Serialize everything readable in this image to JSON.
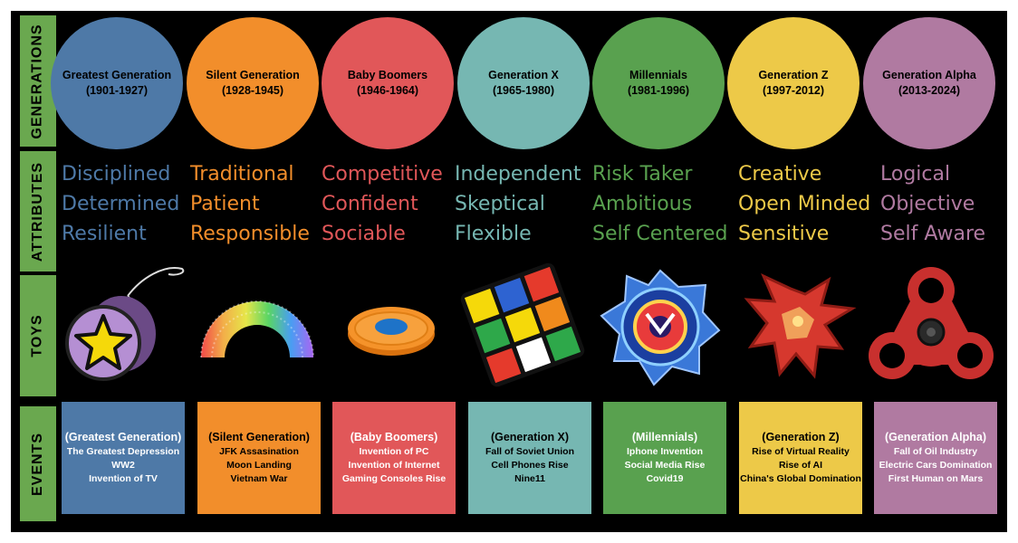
{
  "side_labels": {
    "generations": "GENERATIONS",
    "attributes": "ATTRIBUTES",
    "toys": "TOYS",
    "events": "EVENTS"
  },
  "generations": [
    {
      "name": "Greatest Generation",
      "years": "(1901-1927)",
      "color": "#4e79a7",
      "attributes": [
        "Disciplined",
        "Determined",
        "Resilient"
      ],
      "toy_icon": "yo-yo-icon",
      "event_title": "(Greatest Generation)",
      "events": [
        "The Greatest Depression",
        "WW2",
        "Invention of TV"
      ]
    },
    {
      "name": "Silent Generation",
      "years": "(1928-1945)",
      "color": "#f28e2b",
      "attributes": [
        "Traditional",
        "Patient",
        "Responsible"
      ],
      "toy_icon": "slinky-icon",
      "event_title": "(Silent Generation)",
      "events": [
        "JFK Assasination",
        "Moon Landing",
        "Vietnam War"
      ]
    },
    {
      "name": "Baby Boomers",
      "years": "(1946-1964)",
      "color": "#e15759",
      "attributes": [
        "Competitive",
        "Confident",
        "Sociable"
      ],
      "toy_icon": "frisbee-icon",
      "event_title": "(Baby Boomers)",
      "events": [
        "Invention of PC",
        "Invention of Internet",
        "Gaming Consoles Rise"
      ]
    },
    {
      "name": "Generation X",
      "years": "(1965-1980)",
      "color": "#76b7b2",
      "attributes": [
        "Independent",
        "Skeptical",
        "Flexible"
      ],
      "toy_icon": "rubiks-cube-icon",
      "event_title": "(Generation X)",
      "events": [
        "Fall of Soviet Union",
        "Cell Phones Rise",
        "Nine11"
      ]
    },
    {
      "name": "Millennials",
      "years": "(1981-1996)",
      "color": "#59a14f",
      "attributes": [
        "Risk Taker",
        "Ambitious",
        "Self Centered"
      ],
      "toy_icon": "beyblade-icon",
      "event_title": "(Millennials)",
      "events": [
        "Iphone Invention",
        "Social Media Rise",
        "Covid19"
      ]
    },
    {
      "name": "Generation Z",
      "years": "(1997-2012)",
      "color": "#edc948",
      "attributes": [
        "Creative",
        "Open Minded",
        "Sensitive"
      ],
      "toy_icon": "bakugan-icon",
      "event_title": "(Generation Z)",
      "events": [
        "Rise of Virtual Reality",
        "Rise of AI",
        "China's Global Domination"
      ]
    },
    {
      "name": "Generation Alpha",
      "years": "(2013-2024)",
      "color": "#b07aa1",
      "attributes": [
        "Logical",
        "Objective",
        "Self Aware"
      ],
      "toy_icon": "fidget-spinner-icon",
      "event_title": "(Generation Alpha)",
      "events": [
        "Fall of Oil Industry",
        "Electric Cars Domination",
        "First Human on Mars"
      ]
    }
  ]
}
